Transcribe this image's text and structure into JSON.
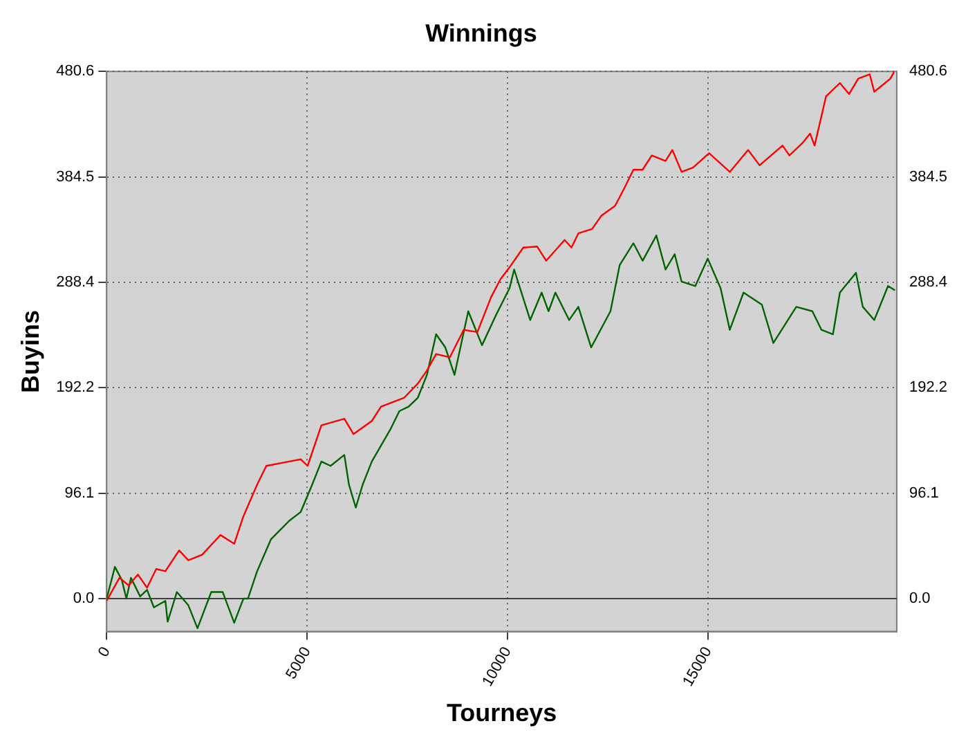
{
  "chart_data": {
    "type": "line",
    "title": "Winnings",
    "xlabel": "Tourneys",
    "ylabel": "Buyins",
    "xlim": [
      0,
      19700
    ],
    "xticks": [
      0,
      5000,
      10000,
      15000
    ],
    "ylim": [
      -30,
      480.6
    ],
    "yticks": [
      {
        "value": 0,
        "label": "0.0"
      },
      96.1,
      192.2,
      288.4,
      384.5,
      480.6
    ],
    "y2lim": [
      -30,
      480.6
    ],
    "y2ticks": [
      {
        "value": 0,
        "label": "0.0"
      },
      96.1,
      192.2,
      288.4,
      384.5,
      480.6
    ],
    "grid": true,
    "legend": false,
    "marker": "none",
    "line_style": "solid",
    "ref_lines": [
      {
        "axis": "y",
        "value": 0,
        "color": "#404040",
        "line_style": "solid"
      }
    ],
    "series": [
      {
        "color": "#ff0000",
        "x": [
          0,
          320,
          549,
          778,
          1007,
          1235,
          1464,
          1808,
          2036,
          2380,
          2837,
          3180,
          3409,
          3752,
          3981,
          4553,
          4839,
          5011,
          5354,
          5926,
          6155,
          6612,
          6841,
          7413,
          7757,
          7986,
          8215,
          8558,
          8901,
          9244,
          9587,
          9816,
          10045,
          10388,
          10732,
          10960,
          11418,
          11590,
          11761,
          12104,
          12333,
          12676,
          12905,
          13134,
          13363,
          13592,
          13935,
          14106,
          14335,
          14621,
          15022,
          15537,
          15994,
          16280,
          16566,
          16852,
          17024,
          17367,
          17538,
          17652,
          17938,
          18282,
          18511,
          18740,
          19026,
          19140,
          19540,
          19632
        ],
        "values": [
          -2,
          19,
          12,
          22,
          10,
          27,
          25,
          44,
          35,
          40,
          58,
          50,
          75,
          104,
          121,
          125,
          127,
          121,
          158,
          164,
          150,
          162,
          175,
          183,
          196,
          208,
          223,
          220,
          245,
          243,
          275,
          291,
          302,
          320,
          321,
          308,
          327,
          320,
          333,
          337,
          349,
          358,
          374,
          391,
          391,
          404,
          399,
          409,
          389,
          393,
          406,
          389,
          409,
          395,
          404,
          413,
          404,
          416,
          424,
          413,
          458,
          470,
          460,
          474,
          478,
          462,
          474,
          480
        ]
      },
      {
        "color": "#006400",
        "x": [
          0,
          206,
          378,
          492,
          606,
          835,
          1007,
          1178,
          1464,
          1521,
          1750,
          2036,
          2265,
          2608,
          2894,
          3180,
          3409,
          3523,
          3752,
          4095,
          4553,
          4839,
          5125,
          5354,
          5583,
          5926,
          6041,
          6212,
          6384,
          6612,
          7070,
          7299,
          7528,
          7757,
          7986,
          8215,
          8444,
          8673,
          9016,
          9359,
          9702,
          10045,
          10160,
          10560,
          10846,
          11018,
          11189,
          11532,
          11761,
          12081,
          12562,
          12791,
          13134,
          13363,
          13706,
          13935,
          14163,
          14335,
          14678,
          14987,
          15308,
          15537,
          15880,
          16337,
          16623,
          17195,
          17596,
          17824,
          18110,
          18282,
          18683,
          18854,
          19140,
          19483,
          19655
        ],
        "values": [
          0,
          29,
          17,
          0,
          19,
          2,
          8,
          -8,
          -2,
          -21,
          6,
          -6,
          -27,
          6,
          6,
          -22,
          0,
          0,
          25,
          54,
          71,
          79,
          104,
          125,
          121,
          131,
          104,
          83,
          104,
          125,
          154,
          171,
          175,
          183,
          204,
          241,
          229,
          204,
          262,
          231,
          258,
          283,
          300,
          254,
          279,
          262,
          279,
          254,
          266,
          229,
          262,
          304,
          324,
          308,
          331,
          300,
          314,
          289,
          285,
          310,
          283,
          245,
          279,
          268,
          233,
          266,
          262,
          245,
          241,
          279,
          297,
          266,
          254,
          285,
          281
        ]
      }
    ]
  }
}
